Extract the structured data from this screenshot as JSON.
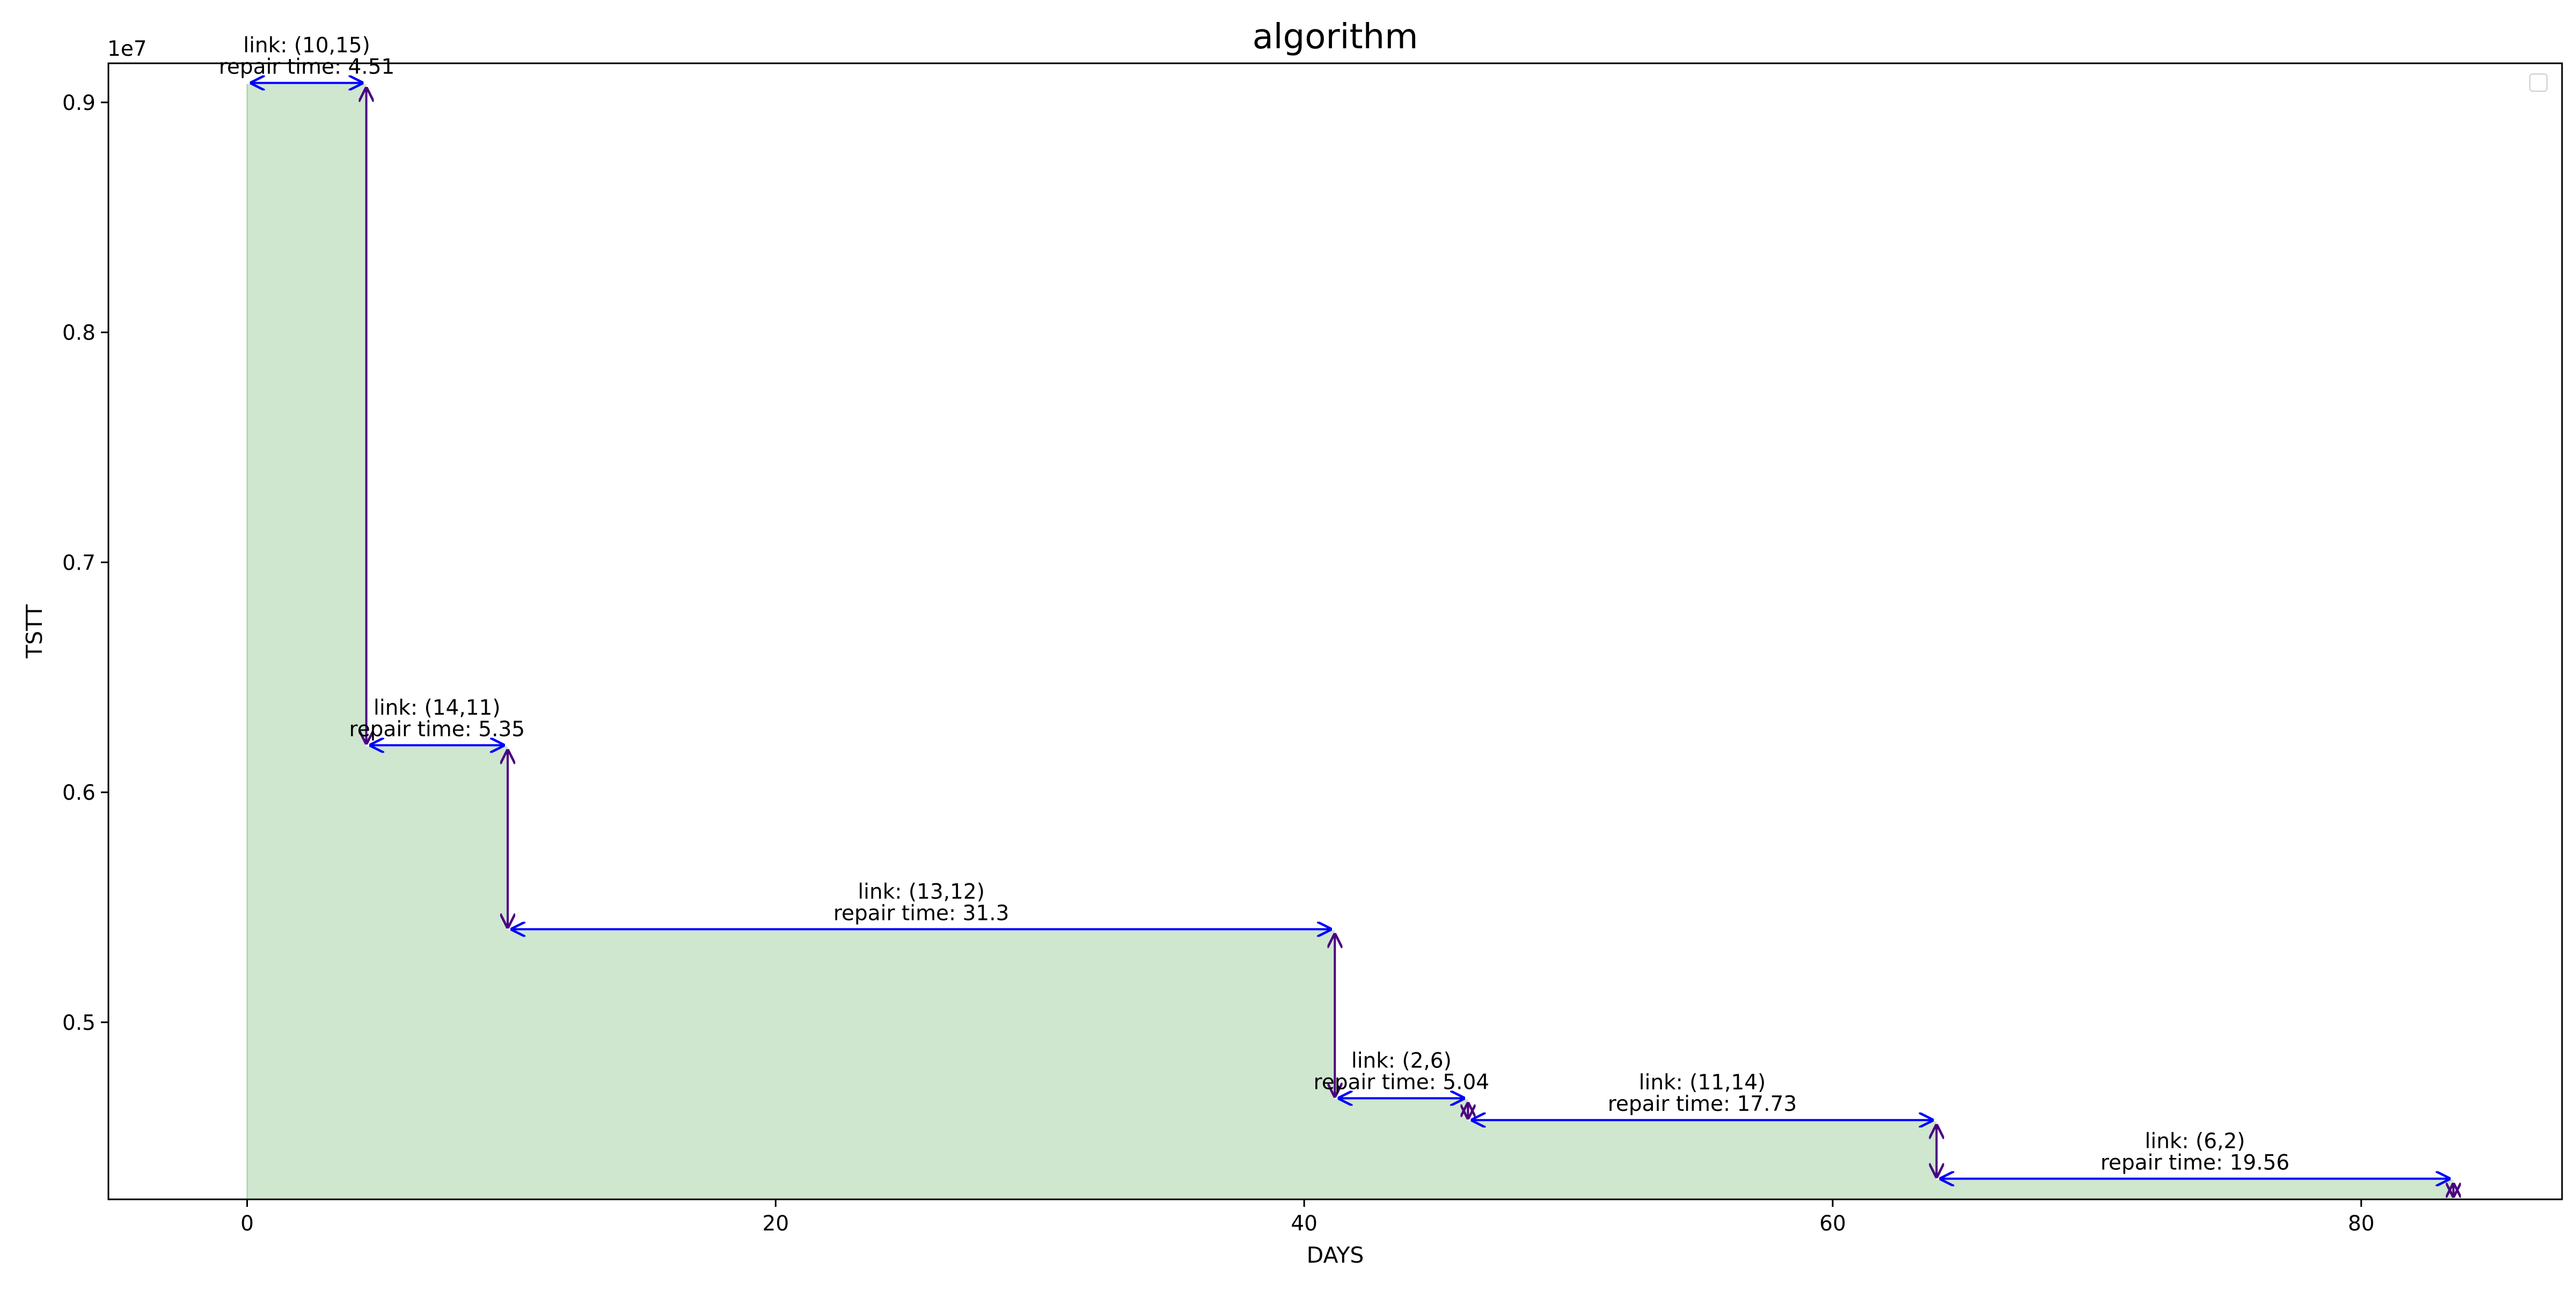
{
  "chart_data": {
    "type": "area",
    "title": "algorithm",
    "xlabel": "DAYS",
    "ylabel": "TSTT",
    "y_offset_label": "1e7",
    "xlim": [
      -5.25,
      87.6
    ],
    "ylim": [
      4.23,
      9.17
    ],
    "x_ticks": [
      0,
      20,
      40,
      60,
      80
    ],
    "y_ticks": [
      0.5,
      0.6,
      0.7,
      0.8,
      0.9
    ],
    "grid": false,
    "legend": "top-right (empty)",
    "fill_color": "#cfe6cf",
    "fill_edge_color": "#9fd19f",
    "arrow_color": "#0000ff",
    "drop_color": "#4b0082",
    "steps": [
      {
        "x": 0,
        "y": 9.08
      },
      {
        "x": 4.51,
        "y": 6.2
      },
      {
        "x": 9.86,
        "y": 5.4
      },
      {
        "x": 41.16,
        "y": 4.665
      },
      {
        "x": 46.2,
        "y": 4.57
      },
      {
        "x": 63.93,
        "y": 4.315
      },
      {
        "x": 83.49,
        "y": 4.23
      }
    ],
    "repairs": [
      {
        "link": "link: (10,15)",
        "repair": "repair time: 4.51",
        "start": 0,
        "end": 4.51,
        "y": 9.08
      },
      {
        "link": "link: (14,11)",
        "repair": "repair time: 5.35",
        "start": 4.51,
        "end": 9.86,
        "y": 6.2
      },
      {
        "link": "link: (13,12)",
        "repair": "repair time: 31.3",
        "start": 9.86,
        "end": 41.16,
        "y": 5.4
      },
      {
        "link": "link: (2,6)",
        "repair": "repair time: 5.04",
        "start": 41.16,
        "end": 46.2,
        "y": 4.665
      },
      {
        "link": "link: (11,14)",
        "repair": "repair time: 17.73",
        "start": 46.2,
        "end": 63.93,
        "y": 4.57
      },
      {
        "link": "link: (6,2)",
        "repair": "repair time: 19.56",
        "start": 63.93,
        "end": 83.49,
        "y": 4.315
      }
    ]
  }
}
